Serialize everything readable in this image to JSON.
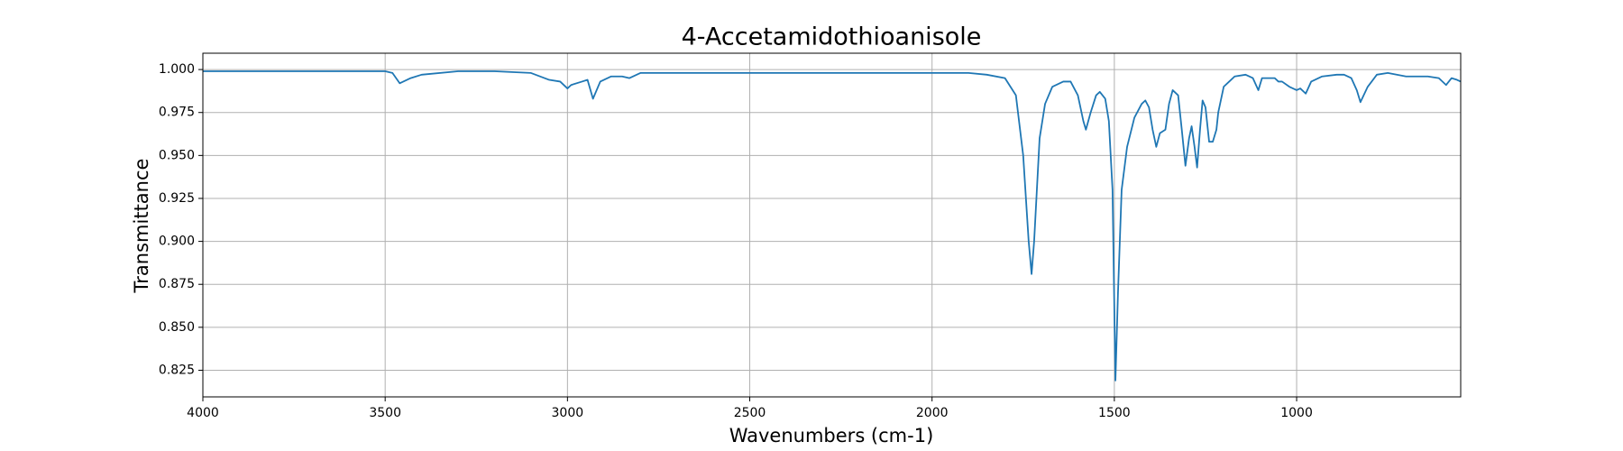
{
  "chart_data": {
    "type": "line",
    "title": "4-Accetamidothioanisole",
    "x_label": "Wavenumbers (cm-1)",
    "y_label": "Transmittance",
    "color": "#1f77b4",
    "grid": true,
    "xlim": [
      4000,
      550
    ],
    "ylim": [
      0.8095,
      1.0095
    ],
    "xticks": [
      4000,
      3500,
      3000,
      2500,
      2000,
      1500,
      1000
    ],
    "yticks": [
      0.825,
      {
        "value": 0.85,
        "label": "0.850"
      },
      0.875,
      {
        "value": 0.9,
        "label": "0.900"
      },
      0.925,
      {
        "value": 0.95,
        "label": "0.950"
      },
      0.975,
      {
        "value": 1,
        "label": "1.000"
      }
    ],
    "x": [
      4000,
      3900,
      3800,
      3700,
      3600,
      3500,
      3480,
      3460,
      3430,
      3400,
      3300,
      3200,
      3100,
      3050,
      3020,
      3000,
      2990,
      2960,
      2945,
      2930,
      2910,
      2880,
      2850,
      2830,
      2800,
      2500,
      2200,
      2000,
      1900,
      1850,
      1800,
      1770,
      1750,
      1735,
      1727,
      1720,
      1705,
      1690,
      1670,
      1640,
      1620,
      1600,
      1585,
      1578,
      1565,
      1550,
      1540,
      1525,
      1515,
      1505,
      1497,
      1490,
      1480,
      1465,
      1445,
      1425,
      1415,
      1405,
      1395,
      1385,
      1375,
      1360,
      1350,
      1340,
      1325,
      1315,
      1305,
      1295,
      1288,
      1280,
      1273,
      1265,
      1258,
      1250,
      1240,
      1230,
      1220,
      1215,
      1200,
      1185,
      1170,
      1140,
      1120,
      1105,
      1095,
      1060,
      1050,
      1040,
      1020,
      1000,
      990,
      975,
      960,
      930,
      890,
      870,
      850,
      835,
      825,
      805,
      780,
      750,
      700,
      640,
      610,
      590,
      575,
      560,
      550
    ],
    "values": [
      0.999,
      0.999,
      0.999,
      0.999,
      0.999,
      0.999,
      0.998,
      0.992,
      0.995,
      0.997,
      0.999,
      0.999,
      0.998,
      0.994,
      0.993,
      0.989,
      0.991,
      0.993,
      0.994,
      0.983,
      0.993,
      0.996,
      0.996,
      0.995,
      0.998,
      0.998,
      0.998,
      0.998,
      0.998,
      0.997,
      0.995,
      0.985,
      0.95,
      0.9,
      0.881,
      0.9,
      0.96,
      0.98,
      0.99,
      0.993,
      0.993,
      0.985,
      0.97,
      0.965,
      0.975,
      0.985,
      0.987,
      0.983,
      0.97,
      0.93,
      0.819,
      0.87,
      0.93,
      0.955,
      0.972,
      0.98,
      0.982,
      0.978,
      0.965,
      0.955,
      0.963,
      0.965,
      0.98,
      0.988,
      0.985,
      0.965,
      0.944,
      0.96,
      0.967,
      0.955,
      0.943,
      0.965,
      0.982,
      0.978,
      0.958,
      0.958,
      0.965,
      0.975,
      0.99,
      0.993,
      0.996,
      0.997,
      0.995,
      0.988,
      0.995,
      0.995,
      0.993,
      0.993,
      0.99,
      0.988,
      0.989,
      0.986,
      0.993,
      0.996,
      0.997,
      0.997,
      0.995,
      0.988,
      0.981,
      0.99,
      0.997,
      0.998,
      0.996,
      0.996,
      0.995,
      0.991,
      0.995,
      0.994,
      0.993
    ]
  }
}
